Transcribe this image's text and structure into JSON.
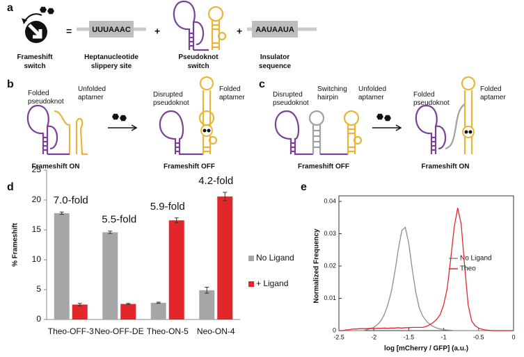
{
  "panel_a": {
    "label": "a",
    "equals": "=",
    "plus": [
      "+",
      "+"
    ],
    "slippery_seq": "UUUAAAC",
    "insulator_seq": "AAUAAUA",
    "captions": [
      [
        "Frameshift",
        "switch"
      ],
      [
        "Heptanucleotide",
        "slippery site"
      ],
      [
        "Pseudoknot",
        "switch"
      ],
      [
        "Insulator",
        "sequence"
      ]
    ]
  },
  "panel_b": {
    "label": "b",
    "annotations": [
      [
        "Folded",
        "pseudoknot"
      ],
      [
        "Unfolded",
        "aptamer"
      ],
      [
        "Disrupted",
        "pseudoknot"
      ],
      [
        "Folded",
        "aptamer"
      ]
    ],
    "states": [
      "Frameshift ON",
      "Frameshift OFF"
    ]
  },
  "panel_c": {
    "label": "c",
    "annotations": [
      [
        "Disrupted",
        "pseudoknot"
      ],
      [
        "Switching",
        "hairpin"
      ],
      [
        "Unfolded",
        "aptamer"
      ],
      [
        "Folded",
        "pseudoknot"
      ],
      [
        "Folded",
        "aptamer"
      ]
    ],
    "states": [
      "Frameshift OFF",
      "Frameshift ON"
    ]
  },
  "chart_data": [
    {
      "type": "bar",
      "panel": "d",
      "ylabel": "% Frameshift",
      "categories": [
        "Theo-OFF-3",
        "Neo-OFF-DE",
        "Theo-ON-5",
        "Neo-ON-4"
      ],
      "annotations": [
        "7.0-fold",
        "5.5-fold",
        "5.9-fold",
        "4.2-fold"
      ],
      "series": [
        {
          "name": "No Ligand",
          "color": "#a6a6a6",
          "values": [
            17.8,
            14.6,
            2.8,
            4.9
          ],
          "errors": [
            0.2,
            0.2,
            0.1,
            0.5
          ]
        },
        {
          "name": "+ Ligand",
          "color": "#e3262a",
          "values": [
            2.5,
            2.6,
            16.6,
            20.6
          ],
          "errors": [
            0.2,
            0.1,
            0.4,
            0.7
          ]
        }
      ],
      "ylim": [
        0,
        25
      ],
      "yticks": [
        0,
        5,
        10,
        15,
        20,
        25
      ]
    },
    {
      "type": "line",
      "panel": "e",
      "xlabel": "log [mCherry / GFP] (a.u.)",
      "ylabel": "Normalized Frequency",
      "x": [
        -2.5,
        -2.45,
        -2.4,
        -2.35,
        -2.3,
        -2.25,
        -2.2,
        -2.15,
        -2.1,
        -2.05,
        -2.0,
        -1.95,
        -1.9,
        -1.85,
        -1.8,
        -1.75,
        -1.7,
        -1.65,
        -1.6,
        -1.55,
        -1.5,
        -1.45,
        -1.4,
        -1.35,
        -1.3,
        -1.25,
        -1.2,
        -1.15,
        -1.1,
        -1.05,
        -1.0,
        -0.95,
        -0.9,
        -0.85,
        -0.8,
        -0.75,
        -0.7,
        -0.65,
        -0.6,
        -0.55,
        -0.5,
        -0.45,
        -0.4,
        -0.35,
        -0.3,
        -0.25,
        -0.2,
        -0.15,
        -0.1,
        -0.05,
        0
      ],
      "series": [
        {
          "name": "No Ligand",
          "color": "#8c8c8c",
          "values": [
            0,
            0,
            0,
            0,
            0,
            0,
            0,
            0,
            0.0003,
            0.0006,
            0.001,
            0.0018,
            0.003,
            0.005,
            0.008,
            0.012,
            0.018,
            0.025,
            0.031,
            0.032,
            0.027,
            0.019,
            0.012,
            0.007,
            0.0045,
            0.003,
            0.002,
            0.0013,
            0.0008,
            0.0005,
            0.0003,
            0.0002,
            0.0001,
            0,
            0,
            0,
            0,
            0,
            0,
            0,
            0,
            0,
            0,
            0,
            0,
            0,
            0,
            0,
            0,
            0,
            0
          ]
        },
        {
          "name": "Theo",
          "color": "#e3262a",
          "values": [
            0,
            0,
            0.0002,
            0.0003,
            0.0005,
            0.0005,
            0.0006,
            0.0006,
            0.0006,
            0.0007,
            0.0006,
            0.0007,
            0.0007,
            0.0008,
            0.0007,
            0.0008,
            0.0008,
            0.0009,
            0.0008,
            0.0009,
            0.0009,
            0.001,
            0.001,
            0.001,
            0.001,
            0.0013,
            0.0018,
            0.0025,
            0.0035,
            0.005,
            0.008,
            0.013,
            0.022,
            0.032,
            0.038,
            0.033,
            0.02,
            0.008,
            0.003,
            0.0015,
            0.0008,
            0.0004,
            0.0002,
            0.0001,
            0,
            0,
            0,
            0,
            0,
            0,
            0
          ]
        }
      ],
      "xlim": [
        -2.5,
        0
      ],
      "xticks": [
        -2.5,
        -2,
        -1.5,
        -1,
        -0.5,
        0
      ],
      "ylim": [
        0,
        0.04
      ],
      "yticks": [
        0,
        0.01,
        0.02,
        0.03,
        0.04
      ]
    }
  ]
}
